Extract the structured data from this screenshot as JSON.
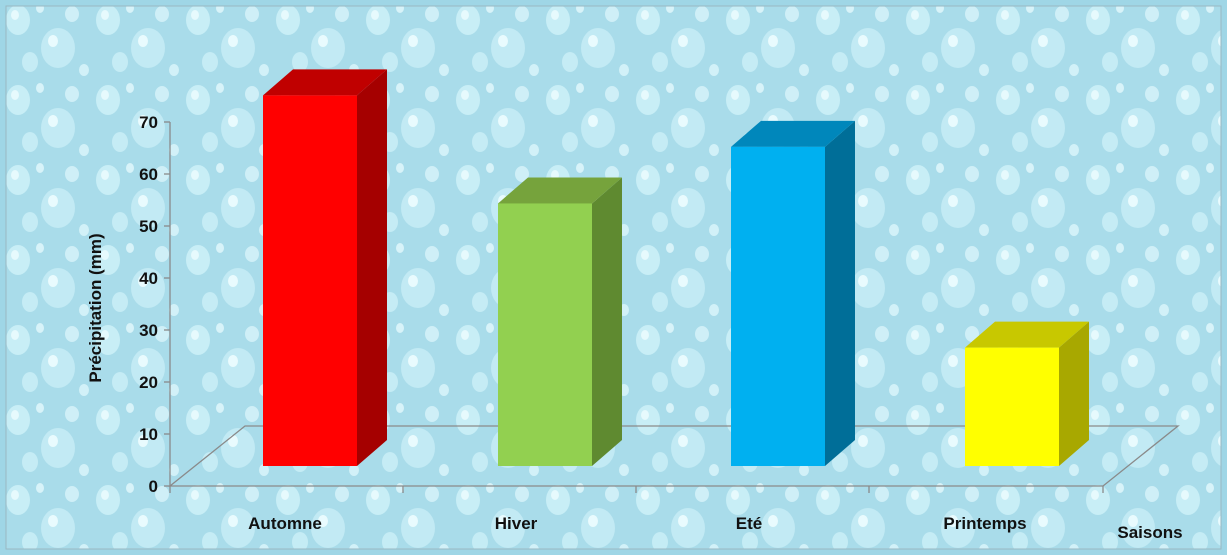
{
  "chart_data": {
    "type": "bar",
    "title": "",
    "categories": [
      "Automne",
      "Hiver",
      "Eté",
      "Printemps"
    ],
    "values": [
      72,
      51,
      62,
      23
    ],
    "bar_colors": [
      {
        "front": "#ff0000",
        "side": "#a50000",
        "top": "#c00000"
      },
      {
        "front": "#92d050",
        "side": "#5f8a30",
        "top": "#76a33c"
      },
      {
        "front": "#00b0f0",
        "side": "#006e98",
        "top": "#0087bb"
      },
      {
        "front": "#ffff00",
        "side": "#a8a800",
        "top": "#c8c800"
      }
    ],
    "ylabel": "Précipitation (mm)",
    "xlabel": "Saisons",
    "ylim": [
      0,
      70
    ],
    "yticks": [
      "0",
      "10",
      "20",
      "30",
      "40",
      "50",
      "60",
      "70"
    ],
    "grid": false,
    "legend": "none",
    "background": "water-drops",
    "colors": {
      "background": "#aee0ec",
      "drop": "#d6f2f8",
      "axis": "#8a8a8a"
    }
  }
}
